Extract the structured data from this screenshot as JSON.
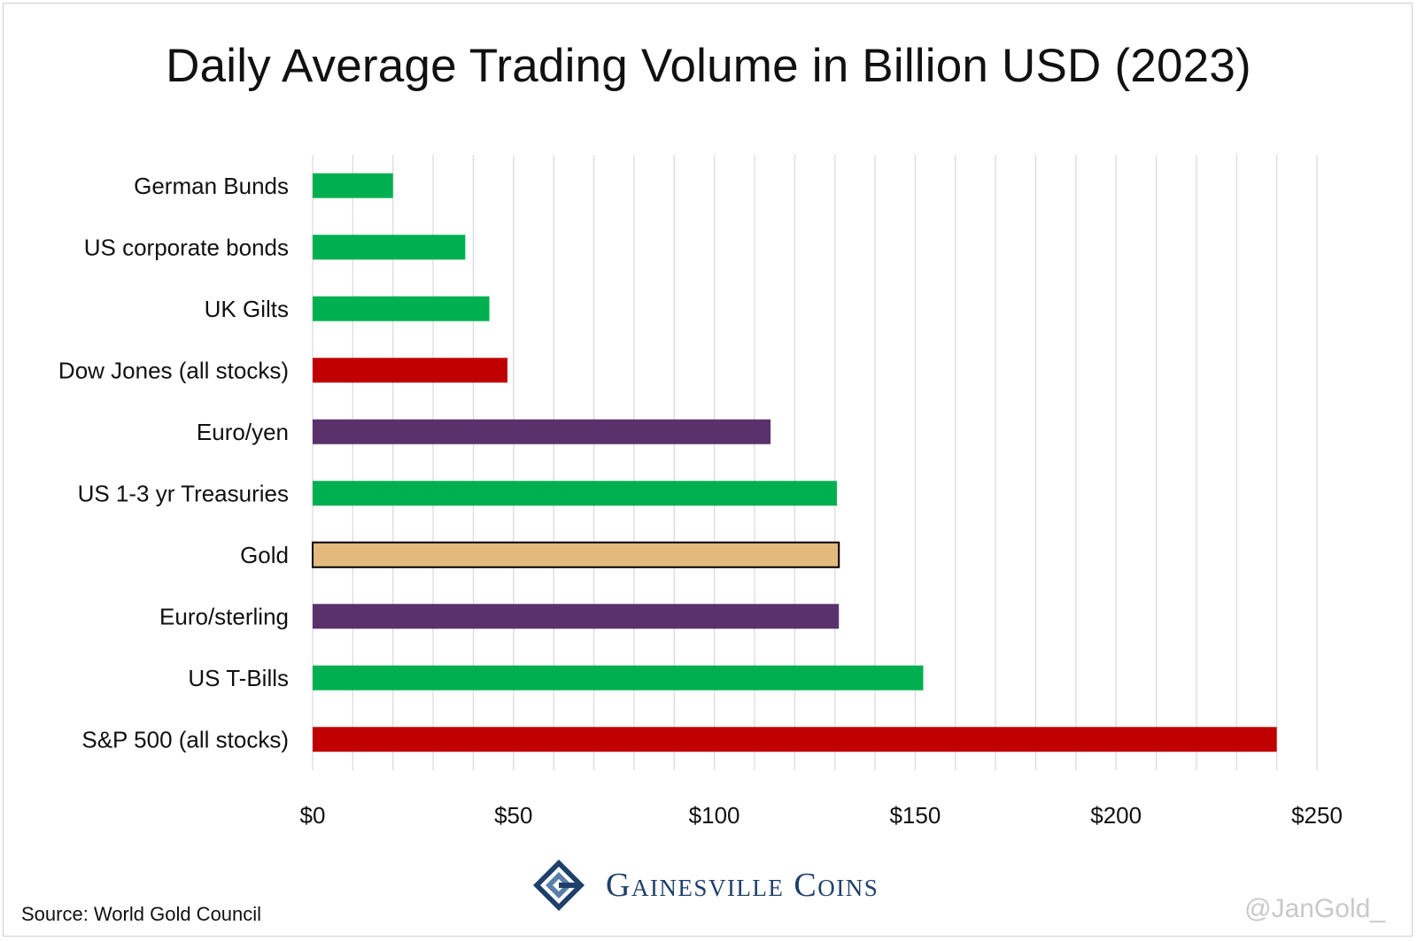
{
  "title": "Daily Average Trading Volume in Billion USD (2023)",
  "source": "Source: World Gold Council",
  "brand": "Gainesville Coins",
  "handle": "@JanGold_",
  "chart_data": {
    "type": "bar",
    "orientation": "horizontal",
    "title": "Daily Average Trading Volume in Billion USD (2023)",
    "xlabel": "",
    "ylabel": "",
    "xlim": [
      0,
      250
    ],
    "x_ticks": [
      0,
      50,
      100,
      150,
      200,
      250
    ],
    "x_tick_labels": [
      "$0",
      "$50",
      "$100",
      "$150",
      "$200",
      "$250"
    ],
    "minor_grid_step": 10,
    "grid": true,
    "legend": "none",
    "categories": [
      "German Bunds",
      "US corporate bonds",
      "UK Gilts",
      "Dow Jones (all stocks)",
      "Euro/yen",
      "US 1-3 yr Treasuries",
      "Gold",
      "Euro/sterling",
      "US T-Bills",
      "S&P 500 (all stocks)"
    ],
    "values": [
      20,
      38,
      44,
      48.5,
      114,
      130.5,
      131,
      131,
      152,
      240
    ],
    "colors": [
      "#00b050",
      "#00b050",
      "#00b050",
      "#c00000",
      "#5b316c",
      "#00b050",
      "#e3b97d",
      "#5b316c",
      "#00b050",
      "#c00000"
    ],
    "outlined": [
      false,
      false,
      false,
      false,
      false,
      false,
      true,
      false,
      false,
      false
    ]
  }
}
